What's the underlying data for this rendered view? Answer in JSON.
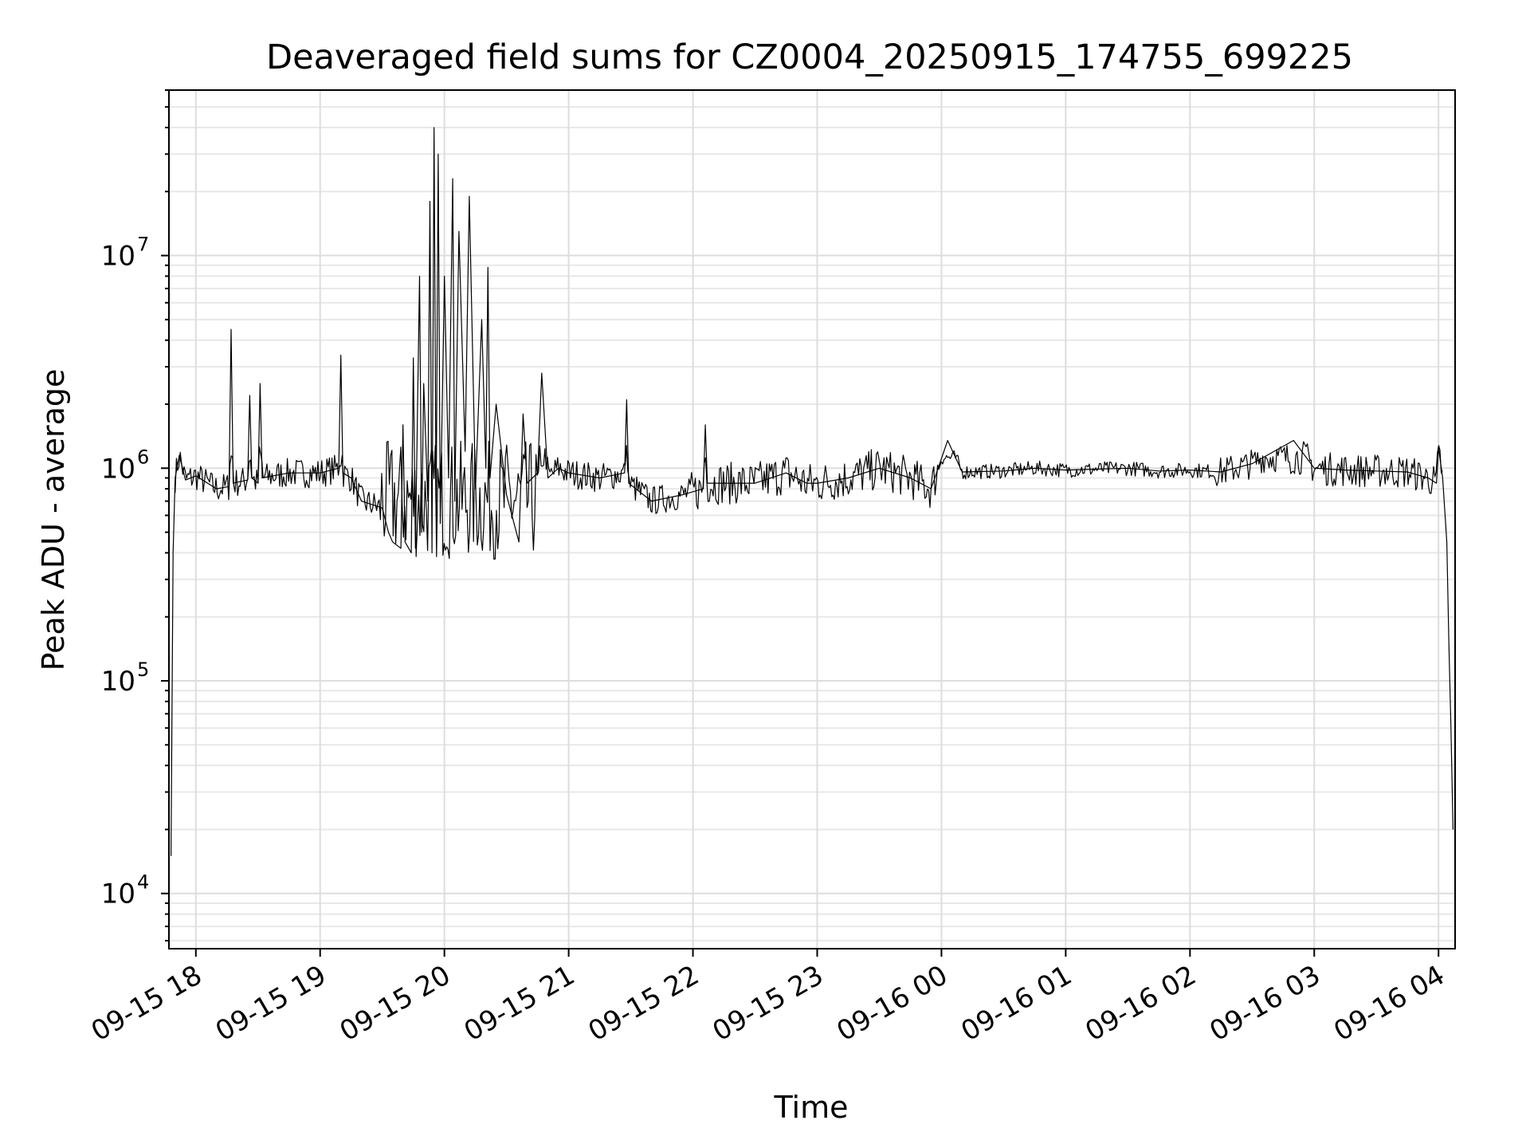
{
  "chart_data": {
    "type": "line",
    "title": "Deaveraged field sums for CZ0004_20250915_174755_699225",
    "xlabel": "Time",
    "ylabel": "Peak ADU - average",
    "yscale": "log",
    "ylim": [
      5500,
      60000000
    ],
    "xlim": [
      "2025-09-15 17:47",
      "2025-09-16 04:08"
    ],
    "grid": true,
    "legend": "none",
    "line_color": "#000000",
    "x_ticks": [
      "09-15 18",
      "09-15 19",
      "09-15 20",
      "09-15 21",
      "09-15 22",
      "09-15 23",
      "09-16 00",
      "09-16 01",
      "09-16 02",
      "09-16 03",
      "09-16 04"
    ],
    "y_ticks": [
      {
        "value": 10000,
        "base": "10",
        "exp": "4"
      },
      {
        "value": 100000,
        "base": "10",
        "exp": "5"
      },
      {
        "value": 1000000,
        "base": "10",
        "exp": "6"
      },
      {
        "value": 10000000,
        "base": "10",
        "exp": "7"
      }
    ],
    "series": [
      {
        "x": [
          "2025-09-15 17:48",
          "2025-09-15 17:49",
          "2025-09-15 17:50",
          "2025-09-15 17:52",
          "2025-09-15 17:55",
          "2025-09-15 18:00",
          "2025-09-15 18:10",
          "2025-09-15 18:16",
          "2025-09-15 18:17",
          "2025-09-15 18:18",
          "2025-09-15 18:25",
          "2025-09-15 18:26",
          "2025-09-15 18:27",
          "2025-09-15 18:30",
          "2025-09-15 18:31",
          "2025-09-15 18:32",
          "2025-09-15 18:45",
          "2025-09-15 19:00",
          "2025-09-15 19:09",
          "2025-09-15 19:10",
          "2025-09-15 19:11",
          "2025-09-15 19:15",
          "2025-09-15 19:20",
          "2025-09-15 19:30",
          "2025-09-15 19:33",
          "2025-09-15 19:35",
          "2025-09-15 19:39",
          "2025-09-15 19:40",
          "2025-09-15 19:41",
          "2025-09-15 19:44",
          "2025-09-15 19:45",
          "2025-09-15 19:46",
          "2025-09-15 19:48",
          "2025-09-15 19:49",
          "2025-09-15 19:50",
          "2025-09-15 19:52",
          "2025-09-15 19:53",
          "2025-09-15 19:54",
          "2025-09-15 19:55",
          "2025-09-15 19:56",
          "2025-09-15 19:57",
          "2025-09-15 19:58",
          "2025-09-15 20:00",
          "2025-09-15 20:02",
          "2025-09-15 20:04",
          "2025-09-15 20:05",
          "2025-09-15 20:07",
          "2025-09-15 20:10",
          "2025-09-15 20:12",
          "2025-09-15 20:15",
          "2025-09-15 20:18",
          "2025-09-15 20:20",
          "2025-09-15 20:21",
          "2025-09-15 20:22",
          "2025-09-15 20:25",
          "2025-09-15 20:30",
          "2025-09-15 20:36",
          "2025-09-15 20:38",
          "2025-09-15 20:40",
          "2025-09-15 20:45",
          "2025-09-15 20:47",
          "2025-09-15 20:50",
          "2025-09-15 20:55",
          "2025-09-15 21:00",
          "2025-09-15 21:15",
          "2025-09-15 21:27",
          "2025-09-15 21:28",
          "2025-09-15 21:29",
          "2025-09-15 21:40",
          "2025-09-15 21:55",
          "2025-09-15 22:05",
          "2025-09-15 22:06",
          "2025-09-15 22:07",
          "2025-09-15 22:15",
          "2025-09-15 22:30",
          "2025-09-15 22:45",
          "2025-09-15 22:55",
          "2025-09-15 23:00",
          "2025-09-15 23:15",
          "2025-09-15 23:30",
          "2025-09-15 23:45",
          "2025-09-15 23:55",
          "2025-09-16 00:03",
          "2025-09-16 00:10",
          "2025-09-16 00:30",
          "2025-09-16 00:45",
          "2025-09-16 01:00",
          "2025-09-16 01:15",
          "2025-09-16 01:30",
          "2025-09-16 01:45",
          "2025-09-16 02:00",
          "2025-09-16 02:15",
          "2025-09-16 02:30",
          "2025-09-16 02:50",
          "2025-09-16 03:00",
          "2025-09-16 03:15",
          "2025-09-16 03:30",
          "2025-09-16 03:45",
          "2025-09-16 03:55",
          "2025-09-16 03:59",
          "2025-09-16 04:00",
          "2025-09-16 04:02",
          "2025-09-16 04:04",
          "2025-09-16 04:05",
          "2025-09-16 04:06",
          "2025-09-16 04:07"
        ],
        "values": [
          15000,
          400000,
          900000,
          1150000,
          880000,
          920000,
          800000,
          820000,
          4500000,
          850000,
          880000,
          2200000,
          900000,
          850000,
          2500000,
          900000,
          950000,
          950000,
          1000000,
          3400000,
          950000,
          900000,
          700000,
          650000,
          500000,
          450000,
          420000,
          1600000,
          450000,
          400000,
          3300000,
          420000,
          8000000,
          500000,
          2500000,
          700000,
          18000000,
          400000,
          40000000,
          600000,
          30000000,
          550000,
          8000000,
          900000,
          23000000,
          700000,
          13000000,
          1200000,
          19000000,
          800000,
          5000000,
          1000000,
          8800000,
          900000,
          2000000,
          750000,
          450000,
          1800000,
          850000,
          950000,
          2800000,
          900000,
          1000000,
          950000,
          900000,
          950000,
          2100000,
          850000,
          700000,
          750000,
          800000,
          1600000,
          850000,
          850000,
          850000,
          950000,
          850000,
          850000,
          900000,
          1000000,
          900000,
          800000,
          1350000,
          960000,
          970000,
          1000000,
          980000,
          990000,
          1000000,
          970000,
          980000,
          960000,
          1050000,
          1350000,
          1000000,
          980000,
          970000,
          960000,
          900000,
          850000,
          1250000,
          900000,
          450000,
          150000,
          60000,
          20000
        ]
      }
    ]
  }
}
